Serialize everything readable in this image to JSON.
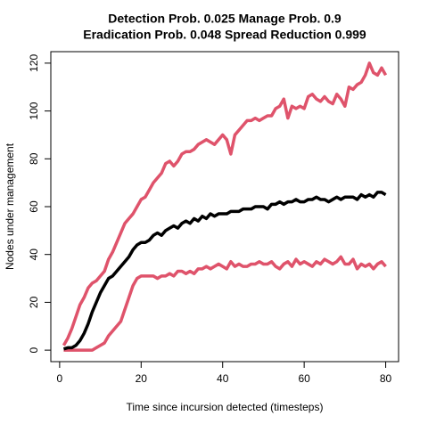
{
  "chart_data": {
    "type": "line",
    "title": [
      "Detection Prob. 0.025 Manage Prob. 0.9",
      "Eradication Prob. 0.048 Spread Reduction 0.999"
    ],
    "xlabel": "Time since incursion detected (timesteps)",
    "ylabel": "Nodes under management",
    "x": [
      1,
      2,
      3,
      4,
      5,
      6,
      7,
      8,
      9,
      10,
      11,
      12,
      13,
      14,
      15,
      16,
      17,
      18,
      19,
      20,
      21,
      22,
      23,
      24,
      25,
      26,
      27,
      28,
      29,
      30,
      31,
      32,
      33,
      34,
      35,
      36,
      37,
      38,
      39,
      40,
      41,
      42,
      43,
      44,
      45,
      46,
      47,
      48,
      49,
      50,
      51,
      52,
      53,
      54,
      55,
      56,
      57,
      58,
      59,
      60,
      61,
      62,
      63,
      64,
      65,
      66,
      67,
      68,
      69,
      70,
      71,
      72,
      73,
      74,
      75,
      76,
      77,
      78,
      79,
      80
    ],
    "series": [
      {
        "color": "#DF536B",
        "values": [
          2,
          5,
          9,
          14,
          19,
          22,
          26,
          28,
          29,
          31,
          33,
          38,
          41,
          45,
          49,
          53,
          55,
          57,
          60,
          63,
          64,
          67,
          70,
          72,
          74,
          78,
          79,
          77,
          79,
          82,
          83,
          83,
          84,
          86,
          87,
          88,
          87,
          86,
          88,
          90,
          88,
          82,
          90,
          92,
          94,
          96,
          96,
          97,
          96,
          97,
          98,
          98,
          101,
          102,
          105,
          97,
          102,
          101,
          102,
          101,
          106,
          107,
          105,
          104,
          106,
          104,
          103,
          107,
          105,
          102,
          110,
          109,
          111,
          112,
          115,
          120,
          116,
          115,
          118,
          115
        ]
      },
      {
        "color": "#DF536B",
        "values": [
          0,
          0,
          0,
          0,
          0,
          0,
          0,
          0,
          1,
          2,
          3,
          6,
          8,
          10,
          12,
          17,
          22,
          27,
          30,
          31,
          31,
          31,
          31,
          30,
          31,
          31,
          32,
          31,
          33,
          33,
          32,
          33,
          32,
          34,
          34,
          35,
          34,
          35,
          36,
          35,
          34,
          37,
          35,
          36,
          35,
          35,
          36,
          36,
          37,
          36,
          36,
          37,
          35,
          34,
          36,
          37,
          35,
          38,
          36,
          37,
          36,
          35,
          37,
          36,
          38,
          37,
          36,
          37,
          39,
          36,
          36,
          38,
          34,
          36,
          35,
          36,
          34,
          36,
          37,
          35
        ]
      },
      {
        "color": "#000000",
        "values": [
          0.5,
          1,
          1,
          2,
          4,
          7,
          11,
          16,
          20,
          24,
          27,
          30,
          31,
          33,
          35,
          37,
          39,
          42,
          44,
          45,
          45,
          46,
          48,
          49,
          48,
          50,
          51,
          52,
          51,
          53,
          54,
          53,
          55,
          54,
          56,
          55,
          57,
          56,
          57,
          57,
          57,
          58,
          58,
          58,
          59,
          59,
          59,
          60,
          60,
          60,
          59,
          61,
          61,
          62,
          61,
          62,
          62,
          63,
          62,
          62,
          63,
          63,
          64,
          63,
          63,
          62,
          63,
          64,
          63,
          64,
          64,
          64,
          63,
          65,
          64,
          65,
          64,
          66,
          66,
          65
        ]
      }
    ],
    "xlim": [
      -2.16,
      83.16
    ],
    "ylim": [
      -4.8,
      124.8
    ],
    "xticks": [
      0,
      20,
      40,
      60,
      80
    ],
    "yticks": [
      0,
      20,
      40,
      60,
      80,
      100,
      120
    ]
  }
}
